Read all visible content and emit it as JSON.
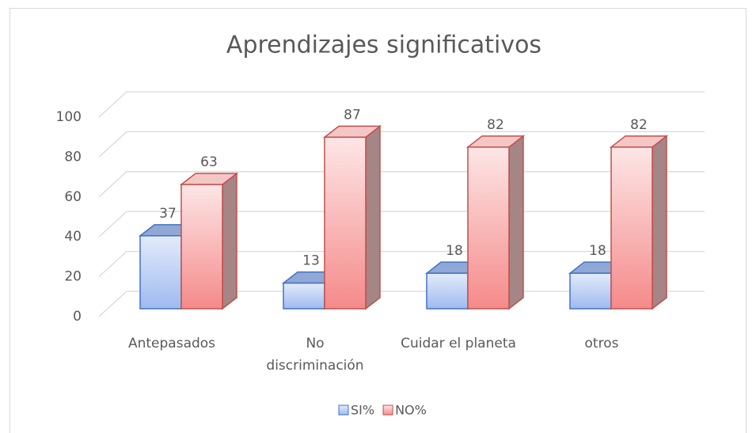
{
  "chart_data": {
    "type": "bar3d",
    "title": "Aprendizajes significativos",
    "categories": [
      "Antepasados",
      "No\ndiscriminación",
      "Cuidar el planeta",
      "otros"
    ],
    "series": [
      {
        "name": "SI%",
        "color": "#4472c4",
        "values": [
          37,
          13,
          18,
          18
        ]
      },
      {
        "name": "NO%",
        "color": "#c0504d",
        "values": [
          63,
          87,
          82,
          82
        ]
      }
    ],
    "ylim": [
      0,
      100
    ],
    "yticks": [
      0,
      20,
      40,
      60,
      80,
      100
    ],
    "grid": true,
    "legend": "bottom"
  }
}
